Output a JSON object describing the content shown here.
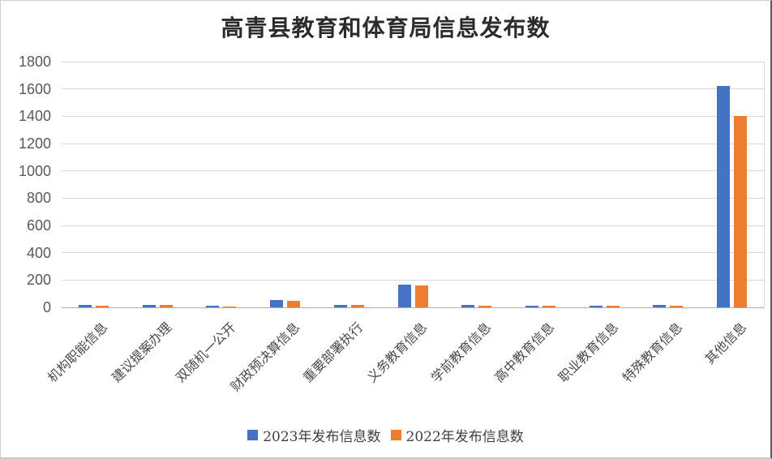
{
  "chart_data": {
    "type": "bar",
    "title": "高青县教育和体育局信息发布数",
    "categories": [
      "机构职能信息",
      "建议提案办理",
      "双随机一公开",
      "财政预决算信息",
      "重要部署执行",
      "义务教育信息",
      "学前教育信息",
      "高中教育信息",
      "职业教育信息",
      "特殊教育信息",
      "其他信息"
    ],
    "series": [
      {
        "name": "2023年发布信息数",
        "color": "#4472C4",
        "values": [
          18,
          20,
          12,
          52,
          20,
          165,
          20,
          14,
          12,
          16,
          1620
        ]
      },
      {
        "name": "2022年发布信息数",
        "color": "#ED7D31",
        "values": [
          10,
          16,
          8,
          50,
          16,
          160,
          12,
          12,
          12,
          14,
          1400
        ]
      }
    ],
    "xlabel": "",
    "ylabel": "",
    "ylim": [
      0,
      1800
    ],
    "yticks": [
      0,
      200,
      400,
      600,
      800,
      1000,
      1200,
      1400,
      1600,
      1800
    ],
    "grid": true,
    "legend_position": "bottom"
  },
  "colors": {
    "series_2023": "#4472C4",
    "series_2022": "#ED7D31",
    "gridline": "#d9d9d9",
    "axis_line": "#adadad",
    "axis_text": "#595959",
    "title_text": "#2b2b2b"
  }
}
